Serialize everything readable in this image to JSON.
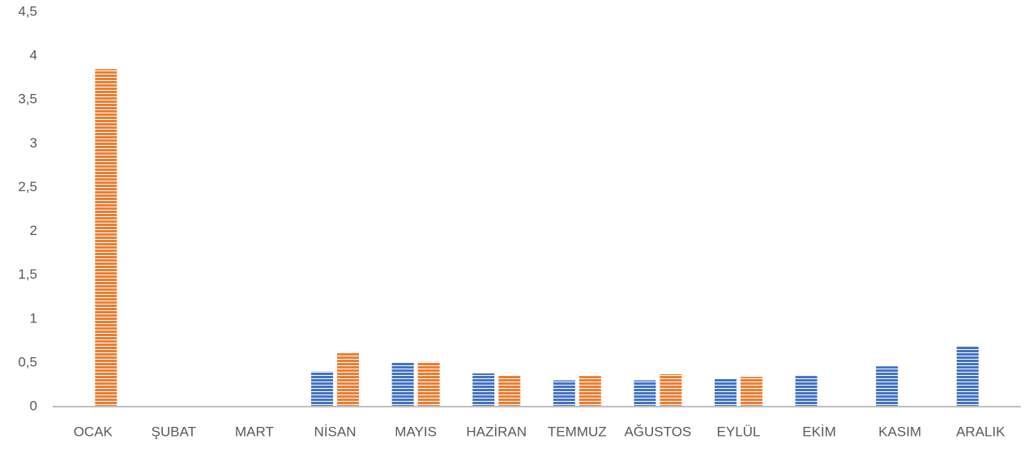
{
  "chart_data": {
    "type": "bar",
    "categories": [
      "OCAK",
      "ŞUBAT",
      "MART",
      "NİSAN",
      "MAYIS",
      "HAZİRAN",
      "TEMMUZ",
      "AĞUSTOS",
      "EYLÜL",
      "EKİM",
      "KASIM",
      "ARALIK"
    ],
    "series": [
      {
        "color": "#4472c4",
        "values": [
          null,
          null,
          null,
          0.4,
          0.5,
          0.38,
          0.3,
          0.3,
          0.32,
          0.35,
          0.46,
          0.69
        ]
      },
      {
        "color": "#ed7d31",
        "values": [
          3.85,
          null,
          null,
          0.61,
          0.51,
          0.36,
          0.35,
          0.37,
          0.34,
          null,
          null,
          null
        ]
      }
    ],
    "ylim": [
      0,
      4.5
    ],
    "yticks": [
      0,
      {
        "value": 0.5,
        "label": "0,5"
      },
      1,
      {
        "value": 1.5,
        "label": "1,5"
      },
      2,
      {
        "value": 2.5,
        "label": "2,5"
      },
      3,
      {
        "value": 3.5,
        "label": "3,5"
      },
      4,
      {
        "value": 4.5,
        "label": "4,5"
      }
    ],
    "grid": false
  }
}
